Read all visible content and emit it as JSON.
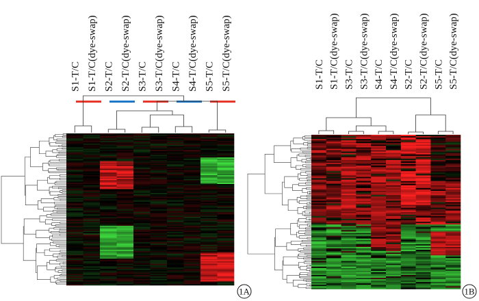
{
  "panel_a": {
    "tag": "1A",
    "columns": [
      "S1-T/C",
      "S1-T/C(dye-swap)",
      "S2-T/C",
      "S2-T/C(dye-swap)",
      "S3-T/C",
      "S3-T/C(dye-swap)",
      "S4-T/C",
      "S4-T/C(dye-swap)",
      "S5-T/C",
      "S5-T/C(dye-swap)"
    ],
    "pair_bar_colors": [
      "#e8362b",
      "#1f78c8",
      "#e8362b",
      "#1f78c8",
      "#e8362b"
    ]
  },
  "panel_b": {
    "tag": "1B",
    "columns": [
      "S1-T/C",
      "S1-T/C(dye-swap)",
      "S3-T/C",
      "S3-T/C(dye-swap)",
      "S4-T/C",
      "S4-T/C(dye-swap)",
      "S2-T/C",
      "S2-T/C(dye-swap)",
      "S5-T/C",
      "S5-T/C(dye-swap)"
    ]
  },
  "colors": {
    "up": "#ff2020",
    "down": "#40e040",
    "neutral": "#000000",
    "dendrogram": "#333333"
  }
}
